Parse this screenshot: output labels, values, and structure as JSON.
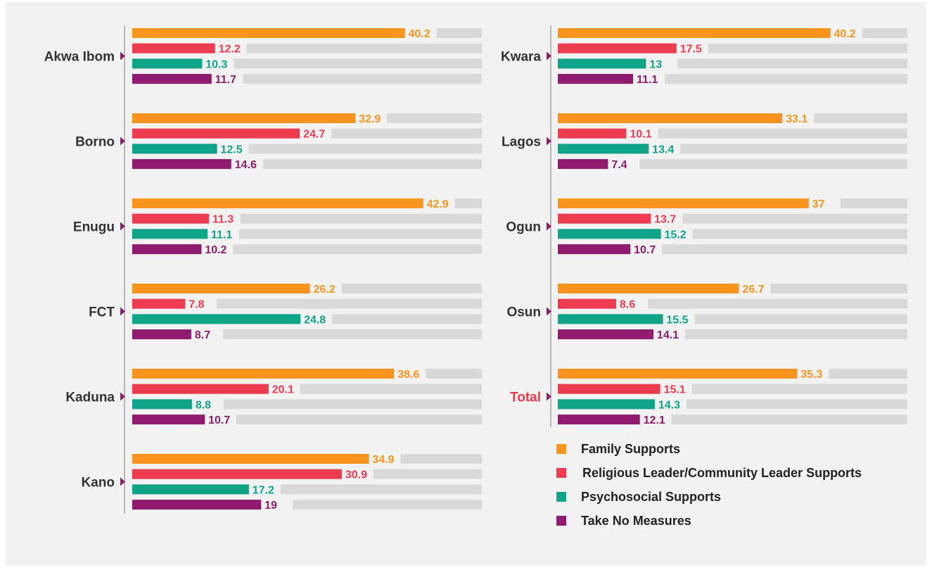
{
  "chart_data": {
    "type": "bar",
    "orientation": "horizontal",
    "scale_max": 50,
    "series": [
      {
        "name": "Family Supports",
        "color": "#f7941d"
      },
      {
        "name": "Religious Leader/Community Leader Supports",
        "color": "#ef3b4f"
      },
      {
        "name": "Psychosocial Supports",
        "color": "#0fa388"
      },
      {
        "name": "Take No Measures",
        "color": "#8e1b6e"
      }
    ],
    "panels": [
      {
        "groups": [
          {
            "label": "Akwa Ibom",
            "values": [
              40.2,
              12.2,
              10.3,
              11.7
            ]
          },
          {
            "label": "Borno",
            "values": [
              32.9,
              24.7,
              12.5,
              14.6
            ]
          },
          {
            "label": "Enugu",
            "values": [
              42.9,
              11.3,
              11.1,
              10.2
            ]
          },
          {
            "label": "FCT",
            "values": [
              26.2,
              7.8,
              24.8,
              8.7
            ]
          },
          {
            "label": "Kaduna",
            "values": [
              38.6,
              20.1,
              8.8,
              10.7
            ]
          },
          {
            "label": "Kano",
            "values": [
              34.9,
              30.9,
              17.2,
              19
            ]
          }
        ]
      },
      {
        "groups": [
          {
            "label": "Kwara",
            "values": [
              40.2,
              17.5,
              13,
              11.1
            ]
          },
          {
            "label": "Lagos",
            "values": [
              33.1,
              10.1,
              13.4,
              7.4
            ]
          },
          {
            "label": "Ogun",
            "values": [
              37,
              13.7,
              15.2,
              10.7
            ]
          },
          {
            "label": "Osun",
            "values": [
              26.7,
              8.6,
              15.5,
              14.1
            ]
          },
          {
            "label": "Total",
            "values": [
              35.3,
              15.1,
              14.3,
              12.1
            ],
            "highlight": true
          }
        ]
      }
    ],
    "colors": {
      "track": "#d9d9d9",
      "panel_bg": "#f2f2f2",
      "axis": "#a6a6a6",
      "label": "#333333",
      "highlight_label": "#ef3b4f",
      "marker": "#8e1b6e"
    }
  }
}
